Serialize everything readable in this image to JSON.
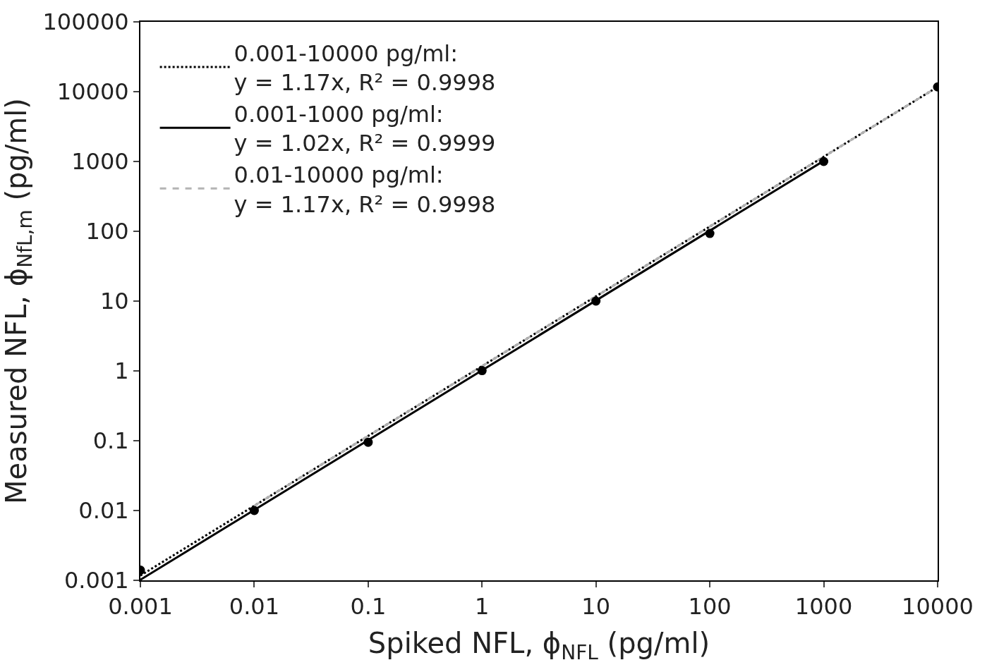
{
  "chart_data": {
    "type": "scatter",
    "xlabel": "Spiked NFL, ϕ$_{NFL}$ (pg/ml)",
    "ylabel": "Measured NFL, ϕ$_{NfL,m}$ (pg/ml)",
    "log": "xy",
    "xlim": [
      0.001,
      10000
    ],
    "ylim": [
      0.001,
      100000
    ],
    "xticks": [
      0.001,
      0.01,
      0.1,
      1,
      10,
      100,
      1000,
      10000
    ],
    "yticks": [
      0.001,
      0.01,
      0.1,
      1,
      10,
      100,
      1000,
      10000,
      100000
    ],
    "grid": false,
    "legend": "top left",
    "series": [
      {
        "type": "line",
        "name": "0.001-10000 pg/ml:\ny = 1.17x, R² = 0.9998",
        "color": "#000000",
        "line_style": "dotted",
        "x": [
          0.001,
          10000
        ],
        "values": [
          0.00117,
          11700
        ]
      },
      {
        "type": "line",
        "name": "0.001-1000 pg/ml:\ny = 1.02x, R² = 0.9999",
        "color": "#000000",
        "line_style": "solid",
        "x": [
          0.001,
          1000
        ],
        "values": [
          0.00102,
          1020
        ]
      },
      {
        "type": "line",
        "name": "0.01-10000 pg/ml:\ny = 1.17x, R² = 0.9998",
        "color": "#b4b4b4",
        "line_style": "dashed",
        "x": [
          0.01,
          10000
        ],
        "values": [
          0.0117,
          11700
        ]
      },
      {
        "color": "#000000",
        "marker": "circle",
        "x": [
          0.001,
          0.01,
          0.1,
          1,
          10,
          100,
          1000,
          10000
        ],
        "values": [
          0.0014,
          0.01,
          0.095,
          1.01,
          10,
          93,
          1000,
          11700
        ]
      }
    ]
  }
}
